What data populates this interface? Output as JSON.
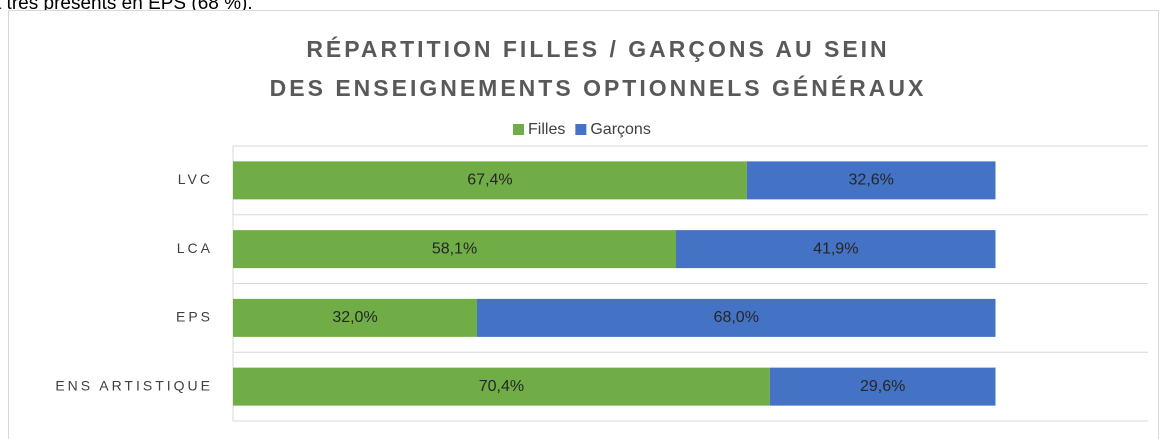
{
  "page_text": "t très présents en EPS (68 %).",
  "chart_data": {
    "type": "stacked-bar-horizontal",
    "title_lines": [
      "RÉPARTITION FILLES / GARÇONS AU SEIN",
      "DES ENSEIGNEMENTS OPTIONNELS GÉNÉRAUX"
    ],
    "categories": [
      "LVC",
      "LCA",
      "EPS",
      "ENS ARTISTIQUE"
    ],
    "series": [
      {
        "name": "Filles",
        "color": "#70ad47",
        "values": [
          67.4,
          58.1,
          32.0,
          70.4
        ],
        "value_labels": [
          "67,4%",
          "58,1%",
          "32,0%",
          "70,4%"
        ]
      },
      {
        "name": "Garçons",
        "color": "#4472c4",
        "values": [
          32.6,
          41.9,
          68.0,
          29.6
        ],
        "value_labels": [
          "32,6%",
          "41,9%",
          "68,0%",
          "29,6%"
        ]
      }
    ],
    "xlim": [
      0,
      120
    ],
    "legend": "top"
  }
}
